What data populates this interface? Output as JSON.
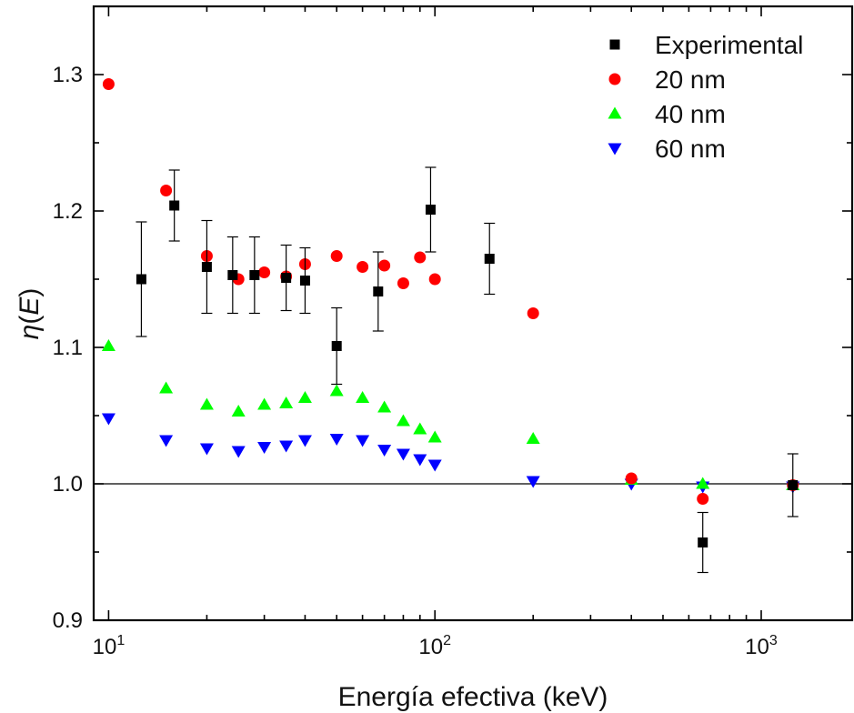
{
  "chart_data": {
    "type": "scatter",
    "title": "",
    "xlabel": "Energía efectiva (keV)",
    "ylabel_symbol": "η",
    "ylabel_open": "(",
    "ylabel_var": "E",
    "ylabel_close": ")",
    "xscale": "log",
    "xlim": [
      9,
      1900
    ],
    "ylim": [
      0.9,
      1.35
    ],
    "grid": false,
    "legend_position": "top-right",
    "x_ticks": [
      {
        "value": 10,
        "base": "10",
        "exp": "1"
      },
      {
        "value": 100,
        "base": "10",
        "exp": "2"
      },
      {
        "value": 1000,
        "base": "10",
        "exp": "3"
      }
    ],
    "y_ticks": [
      {
        "value": 0.9,
        "label": "0.9"
      },
      {
        "value": 1.0,
        "label": "1.0"
      },
      {
        "value": 1.1,
        "label": "1.1"
      },
      {
        "value": 1.2,
        "label": "1.2"
      },
      {
        "value": 1.3,
        "label": "1.3"
      }
    ],
    "reference_line": {
      "y": 1.0
    },
    "series": [
      {
        "name": "Experimental",
        "marker": "square",
        "color": "#000000",
        "points": [
          {
            "x": 12.6,
            "y": 1.15,
            "yerr": 0.042
          },
          {
            "x": 15.9,
            "y": 1.204,
            "yerr": 0.026
          },
          {
            "x": 20,
            "y": 1.159,
            "yerr": 0.034
          },
          {
            "x": 24,
            "y": 1.153,
            "yerr": 0.028
          },
          {
            "x": 28,
            "y": 1.153,
            "yerr": 0.028
          },
          {
            "x": 35,
            "y": 1.151,
            "yerr": 0.024
          },
          {
            "x": 40,
            "y": 1.149,
            "yerr": 0.024
          },
          {
            "x": 50,
            "y": 1.101,
            "yerr": 0.028
          },
          {
            "x": 67,
            "y": 1.141,
            "yerr": 0.029
          },
          {
            "x": 97,
            "y": 1.201,
            "yerr": 0.031
          },
          {
            "x": 147,
            "y": 1.165,
            "yerr": 0.026
          },
          {
            "x": 662,
            "y": 0.957,
            "yerr": 0.022
          },
          {
            "x": 1250,
            "y": 0.999,
            "yerr": 0.023
          }
        ]
      },
      {
        "name": "20 nm",
        "marker": "circle",
        "color": "#ff0000",
        "points": [
          {
            "x": 10,
            "y": 1.293
          },
          {
            "x": 15,
            "y": 1.215
          },
          {
            "x": 20,
            "y": 1.167
          },
          {
            "x": 25,
            "y": 1.15
          },
          {
            "x": 30,
            "y": 1.155
          },
          {
            "x": 35,
            "y": 1.152
          },
          {
            "x": 40,
            "y": 1.161
          },
          {
            "x": 50,
            "y": 1.167
          },
          {
            "x": 60,
            "y": 1.159
          },
          {
            "x": 70,
            "y": 1.16
          },
          {
            "x": 80,
            "y": 1.147
          },
          {
            "x": 90,
            "y": 1.166
          },
          {
            "x": 100,
            "y": 1.15
          },
          {
            "x": 200,
            "y": 1.125
          },
          {
            "x": 400,
            "y": 1.004
          },
          {
            "x": 662,
            "y": 0.989
          },
          {
            "x": 1250,
            "y": 0.999
          }
        ]
      },
      {
        "name": "40 nm",
        "marker": "triangle-up",
        "color": "#00ff00",
        "points": [
          {
            "x": 10,
            "y": 1.101
          },
          {
            "x": 15,
            "y": 1.07
          },
          {
            "x": 20,
            "y": 1.058
          },
          {
            "x": 25,
            "y": 1.053
          },
          {
            "x": 30,
            "y": 1.058
          },
          {
            "x": 35,
            "y": 1.059
          },
          {
            "x": 40,
            "y": 1.063
          },
          {
            "x": 50,
            "y": 1.068
          },
          {
            "x": 60,
            "y": 1.063
          },
          {
            "x": 70,
            "y": 1.056
          },
          {
            "x": 80,
            "y": 1.046
          },
          {
            "x": 90,
            "y": 1.04
          },
          {
            "x": 100,
            "y": 1.034
          },
          {
            "x": 200,
            "y": 1.033
          },
          {
            "x": 400,
            "y": 1.003
          },
          {
            "x": 662,
            "y": 1.0
          },
          {
            "x": 1250,
            "y": 0.999
          }
        ]
      },
      {
        "name": "60 nm",
        "marker": "triangle-down",
        "color": "#0000ff",
        "points": [
          {
            "x": 10,
            "y": 1.048
          },
          {
            "x": 15,
            "y": 1.032
          },
          {
            "x": 20,
            "y": 1.026
          },
          {
            "x": 25,
            "y": 1.024
          },
          {
            "x": 30,
            "y": 1.027
          },
          {
            "x": 35,
            "y": 1.028
          },
          {
            "x": 40,
            "y": 1.032
          },
          {
            "x": 50,
            "y": 1.033
          },
          {
            "x": 60,
            "y": 1.032
          },
          {
            "x": 70,
            "y": 1.025
          },
          {
            "x": 80,
            "y": 1.022
          },
          {
            "x": 90,
            "y": 1.018
          },
          {
            "x": 100,
            "y": 1.014
          },
          {
            "x": 200,
            "y": 1.002
          },
          {
            "x": 400,
            "y": 1.0
          },
          {
            "x": 662,
            "y": 0.998
          },
          {
            "x": 1250,
            "y": 0.998
          }
        ]
      }
    ]
  }
}
